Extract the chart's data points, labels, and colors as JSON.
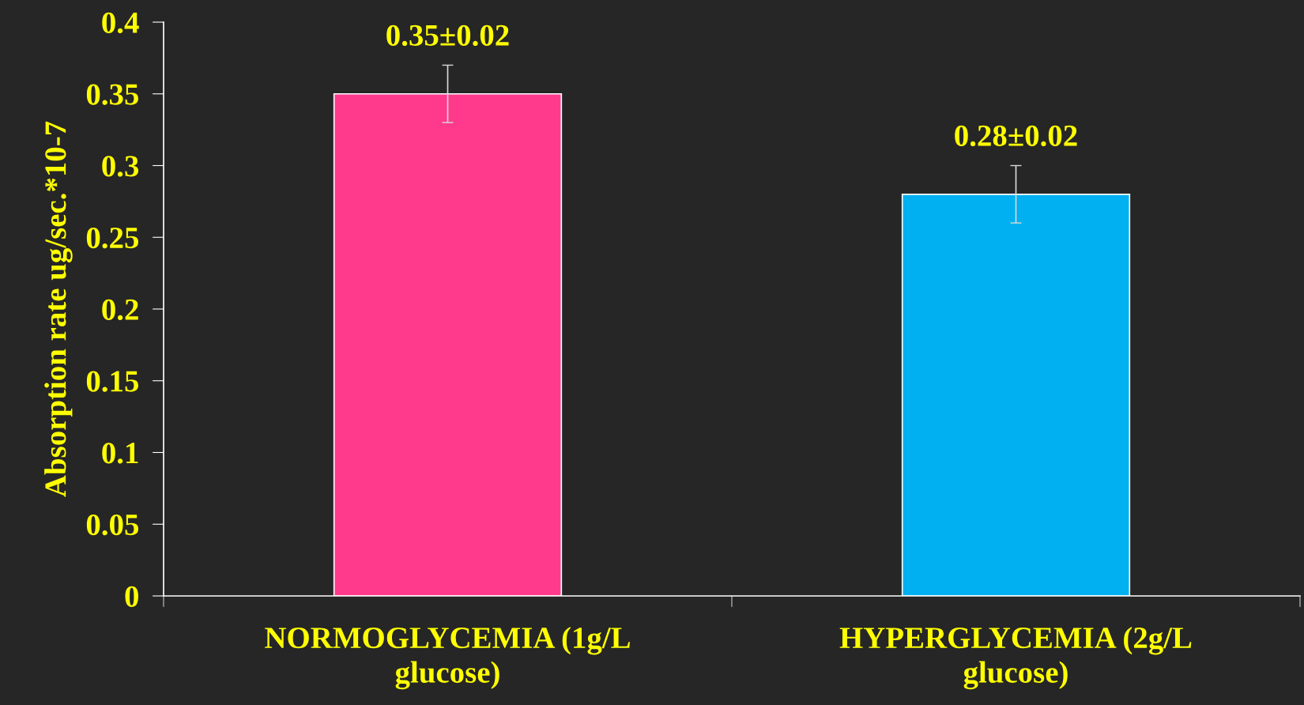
{
  "chart_data": {
    "type": "bar",
    "ylabel": "Absorption rate ug/sec.*10-7",
    "categories": [
      "NORMOGLYCEMIA (1g/L glucose)",
      "HYPERGLYCEMIA (2g/L glucose)"
    ],
    "values": [
      0.35,
      0.28
    ],
    "errors": [
      0.02,
      0.02
    ],
    "value_labels": [
      "0.35±0.02",
      "0.28±0.02"
    ],
    "colors": [
      "#ff3a8c",
      "#00b0f0"
    ],
    "ylim": [
      0,
      0.4
    ],
    "yticks": [
      0,
      0.05,
      {
        "value": 0.1,
        "label": "0.1"
      },
      0.15,
      {
        "value": 0.2,
        "label": "0.2"
      },
      0.25,
      {
        "value": 0.3,
        "label": "0.3"
      },
      0.35,
      {
        "value": 0.4,
        "label": "0.4"
      }
    ],
    "grid": false,
    "legend": false
  }
}
